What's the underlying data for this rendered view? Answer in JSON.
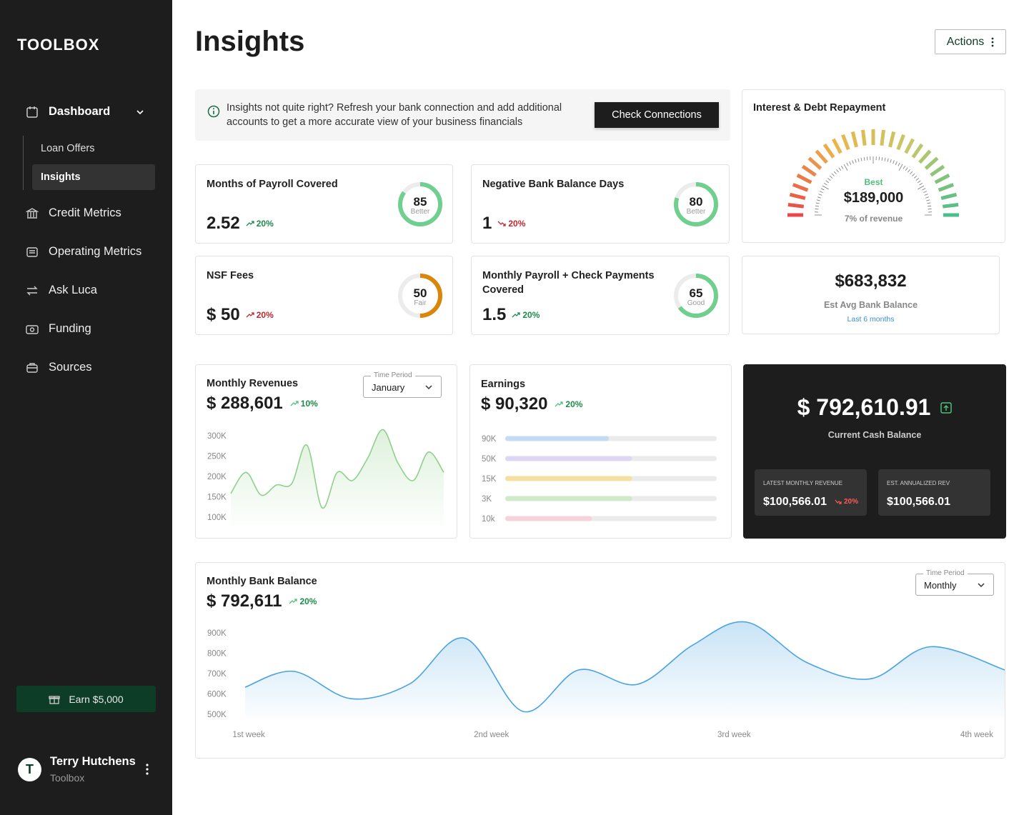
{
  "sidebar": {
    "brand": "TOOLBOX",
    "nav": [
      "Dashboard",
      "Credit Metrics",
      "Operating Metrics",
      "Ask Luca",
      "Funding",
      "Sources"
    ],
    "subnav": [
      "Loan Offers",
      "Insights"
    ],
    "earn": "Earn $5,000",
    "user": {
      "initial": "T",
      "name": "Terry Hutchens",
      "org": "Toolbox"
    }
  },
  "header": {
    "title": "Insights",
    "actions": "Actions"
  },
  "notice": {
    "text": "Insights not quite right? Refresh your bank connection and add additional accounts to get a more accurate view of your business financials",
    "button": "Check Connections"
  },
  "metrics": {
    "score_lim": [
      0,
      100
    ],
    "items": [
      {
        "title": "Months of Payroll Covered",
        "value": "2.52",
        "change": "20%",
        "direction": "up",
        "change_color": "#1e8a4c",
        "score": 85,
        "rating": "Better",
        "ring_color": "#6fcf8e"
      },
      {
        "title": "Negative Bank Balance Days",
        "value": "1",
        "change": "20%",
        "direction": "down",
        "change_color": "#c0262d",
        "score": 80,
        "rating": "Better",
        "ring_color": "#6fcf8e"
      },
      {
        "title": "NSF Fees",
        "value": "$ 50",
        "change": "20%",
        "direction": "up",
        "change_color": "#c0262d",
        "score": 50,
        "rating": "Fair",
        "ring_color": "#d9860b"
      },
      {
        "title": "Monthly Payroll + Check Payments Covered",
        "value": "1.5",
        "change": "20%",
        "direction": "up",
        "change_color": "#1e8a4c",
        "score": 65,
        "rating": "Good",
        "ring_color": "#6fcf8e"
      }
    ]
  },
  "gauge": {
    "title": "Interest & Debt Repayment",
    "rating": "Best",
    "value": "$189,000",
    "note": "7% of revenue"
  },
  "avg_balance": {
    "value": "$683,832",
    "label": "Est Avg Bank Balance",
    "period": "Last 6 months"
  },
  "cash": {
    "value": "$ 792,610.91",
    "label": "Current Cash Balance",
    "tiles": [
      {
        "label": "LATEST MONTHLY REVENUE",
        "value": "$100,566.01",
        "change": "20%"
      },
      {
        "label": "EST. ANNUALIZED REV",
        "value": "$100,566.01"
      }
    ]
  },
  "chart_data": [
    {
      "type": "line",
      "title": "Monthly Revenues",
      "value": "$ 288,601",
      "change": "10%",
      "period_label": "Time Period",
      "period": "January",
      "color": "#8fd18a",
      "categories": [
        null,
        null,
        null,
        null,
        null,
        null,
        null,
        null,
        null,
        null,
        null,
        null,
        null,
        null,
        null
      ],
      "values": [
        158000,
        210000,
        154000,
        179000,
        182000,
        277000,
        123000,
        210000,
        190000,
        245000,
        315000,
        232000,
        190000,
        260000,
        210000
      ],
      "ylim": [
        80000,
        320000
      ],
      "yticks": [
        {
          "value": 300000,
          "label": "300K"
        },
        {
          "value": 250000,
          "label": "250K"
        },
        {
          "value": 200000,
          "label": "200K"
        },
        {
          "value": 150000,
          "label": "150K"
        },
        {
          "value": 100000,
          "label": "100K"
        }
      ]
    },
    {
      "type": "bar",
      "title": "Earnings",
      "value": "$ 90,320",
      "change": "20%",
      "categories": [
        "90K",
        "50K",
        "15K",
        "3K",
        "10k"
      ],
      "values": [
        49,
        60,
        60,
        60,
        41
      ],
      "xlim": [
        0,
        100
      ],
      "colors": [
        "#c3dbf3",
        "#ddd6f5",
        "#f6e0a0",
        "#cfeac9",
        "#f6d3da"
      ],
      "track_color": "#ebebeb"
    },
    {
      "type": "line",
      "title": "Monthly Bank Balance",
      "value": "$ 792,611",
      "change": "20%",
      "period_label": "Time Period",
      "period": "Monthly",
      "color": "#4aa3e0",
      "x": [
        0.985,
        1.185,
        1.42,
        1.66,
        1.89,
        2.13,
        2.36,
        2.6,
        2.83,
        3.05,
        3.3,
        3.56,
        3.81,
        4.115
      ],
      "values": [
        633000,
        711000,
        577000,
        647000,
        874000,
        514000,
        718000,
        647000,
        840000,
        953000,
        754000,
        674000,
        832000,
        718000
      ],
      "xlim": [
        0.985,
        4.115
      ],
      "xticks": [
        {
          "value": 1,
          "label": "1st week"
        },
        {
          "value": 2,
          "label": "2nd week"
        },
        {
          "value": 3,
          "label": "3rd week"
        },
        {
          "value": 4,
          "label": "4th week"
        }
      ],
      "ylim": [
        480000,
        960000
      ],
      "yticks": [
        {
          "value": 900000,
          "label": "900K"
        },
        {
          "value": 800000,
          "label": "800K"
        },
        {
          "value": 700000,
          "label": "700K"
        },
        {
          "value": 600000,
          "label": "600K"
        },
        {
          "value": 500000,
          "label": "500K"
        }
      ]
    }
  ]
}
